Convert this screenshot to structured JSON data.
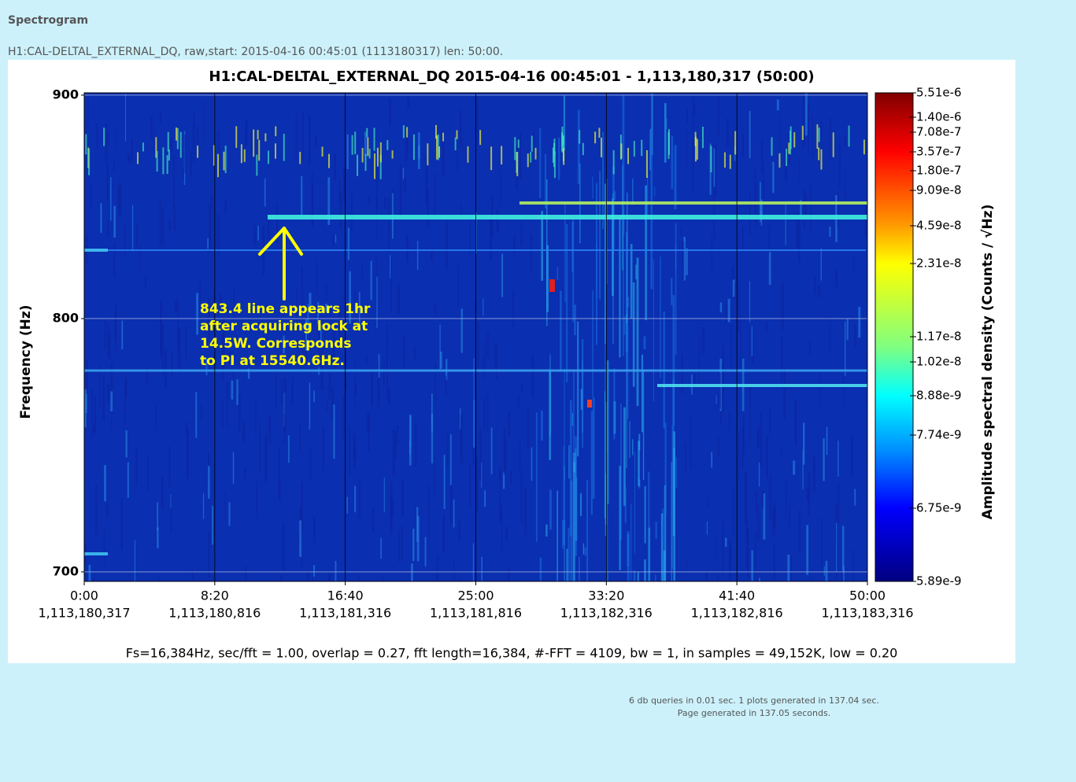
{
  "page": {
    "heading": "Spectrogram",
    "description": "H1:CAL-DELTAL_EXTERNAL_DQ, raw,start: 2015-04-16 00:45:01 (1113180317) len: 50:00.",
    "stats": [
      "6 db queries in 0.01 sec. 1 plots generated in 137.04 sec.",
      "Page generated in 137.05 seconds."
    ]
  },
  "chart_data": {
    "type": "spectrogram",
    "title": "H1:CAL-DELTAL_EXTERNAL_DQ 2015-04-16 00:45:01 - 1,113,180,317 (50:00)",
    "y_label": "Frequency (Hz)",
    "ylim": [
      696.5,
      901.1
    ],
    "log_y": true,
    "yticks": [
      700,
      800,
      900
    ],
    "xlim": [
      0,
      3000
    ],
    "xticks": [
      {
        "value": 0,
        "label": "0:00",
        "gps": "1,113,180,317"
      },
      {
        "value": 500,
        "label": "8:20",
        "gps": "1,113,180,816"
      },
      {
        "value": 1000,
        "label": "16:40",
        "gps": "1,113,181,316"
      },
      {
        "value": 1500,
        "label": "25:00",
        "gps": "1,113,181,816"
      },
      {
        "value": 2000,
        "label": "33:20",
        "gps": "1,113,182,316"
      },
      {
        "value": 2500,
        "label": "41:40",
        "gps": "1,113,182,816"
      },
      {
        "value": 3000,
        "label": "50:00",
        "gps": "1,113,183,316"
      }
    ],
    "grid": true,
    "colorbar_label": "Amplitude spectral density (Counts / √Hz)",
    "colorbar_ticks": [
      {
        "value": 5.51e-06,
        "label": "5.51e-6"
      },
      {
        "value": 1.4e-06,
        "label": "1.40e-6"
      },
      {
        "value": 7.08e-07,
        "label": "7.08e-7"
      },
      {
        "value": 3.57e-07,
        "label": "3.57e-7"
      },
      {
        "value": 1.8e-07,
        "label": "1.80e-7"
      },
      {
        "value": 9.09e-08,
        "label": "9.09e-8"
      },
      {
        "value": 4.59e-08,
        "label": "4.59e-8"
      },
      {
        "value": 2.31e-08,
        "label": "2.31e-8"
      },
      {
        "value": 1.17e-08,
        "label": "1.17e-8"
      },
      {
        "value": 1.02e-08,
        "label": "1.02e-8"
      },
      {
        "value": 8.88e-09,
        "label": "8.88e-9"
      },
      {
        "value": 7.74e-09,
        "label": "7.74e-9"
      },
      {
        "value": 6.75e-09,
        "label": "6.75e-9"
      },
      {
        "value": 5.89e-09,
        "label": "5.89e-9"
      }
    ],
    "annotation": [
      "843.4 line appears 1hr",
      "after acquiring lock at",
      "14.5W.   Corresponds",
      "to PI at 15540.6Hz."
    ],
    "footer": "Fs=16,384Hz, sec/fft = 1.00, overlap = 0.27, fft length=16,384, #-FFT = 4109, bw = 1, in samples = 49,152K, low = 0.20"
  }
}
